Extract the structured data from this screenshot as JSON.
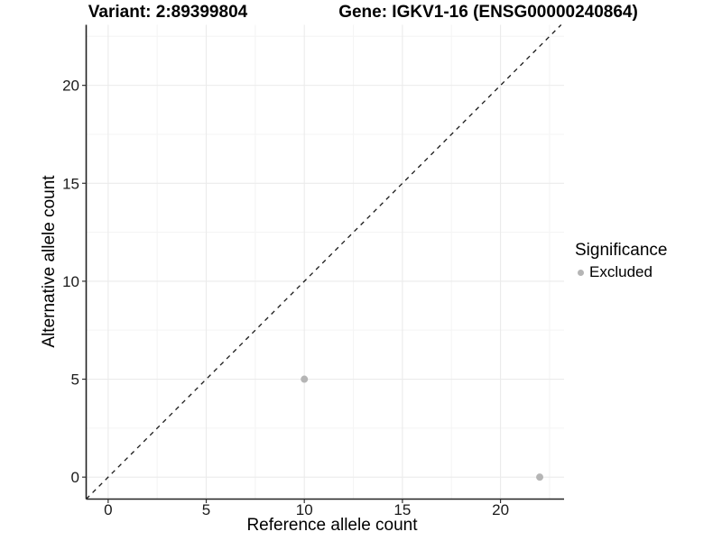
{
  "titles": {
    "variant": "Variant: 2:89399804",
    "gene": "Gene: IGKV1-16 (ENSG00000240864)"
  },
  "chart_data": {
    "type": "scatter",
    "xlabel": "Reference allele count",
    "ylabel": "Alternative allele count",
    "x_ticks": [
      0,
      5,
      10,
      15,
      20
    ],
    "y_ticks": [
      0,
      5,
      10,
      15,
      20
    ],
    "minor_ticks": [
      2.5,
      7.5,
      12.5,
      17.5,
      22.5
    ],
    "xlim": [
      -1.12,
      23.24
    ],
    "ylim": [
      -1.12,
      23.09
    ],
    "grid": true,
    "reference_line": {
      "kind": "identity y=x",
      "style": "dashed",
      "color": "#1a1a1a"
    },
    "series": [
      {
        "name": "Excluded",
        "color": "#b5b5b5",
        "points": [
          {
            "x": 10,
            "y": 5
          },
          {
            "x": 22,
            "y": 0
          }
        ]
      }
    ],
    "legend": {
      "title": "Significance",
      "position": "right",
      "items": [
        {
          "label": "Excluded",
          "color": "#b5b5b5"
        }
      ]
    }
  },
  "colors": {
    "background": "#ffffff",
    "grid_major": "#ebebeb",
    "grid_minor": "#f5f5f5",
    "axis_line": "#222222",
    "tick_mark": "#333333",
    "tick_label": "#1a1a1a",
    "point": "#b5b5b5"
  }
}
